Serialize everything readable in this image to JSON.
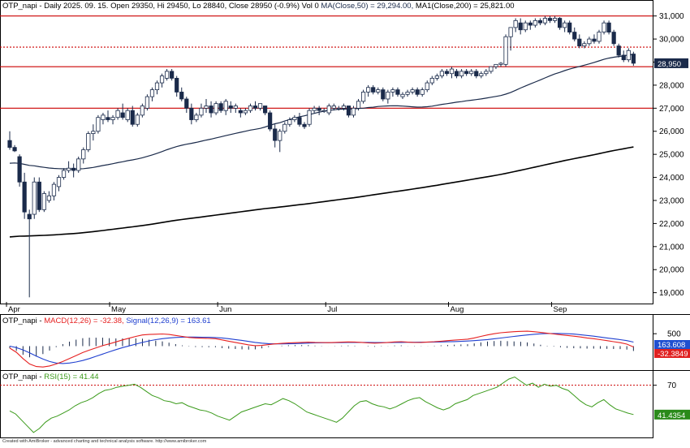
{
  "header": {
    "main_prefix": "OTP_napi - Daily 2025. 09. 15. Open 29350, Hi 29450, Lo 28840, Close 28950 (-0.9%) Vol 0 ",
    "ma50_label": "MA(Close,50) = 29,294.00,",
    "ma200_label": " MA1(Close,200) = 25,821.00",
    "macd_prefix": "OTP_napi - ",
    "macd_label": "MACD(12,26) = -32.38,",
    "signal_label": " Signal(12,26,9) = 163.61",
    "rsi_prefix": "OTP_napi - ",
    "rsi_label": "RSI(15) = 41.44",
    "footer": "Created with AmiBroker - advanced charting and technical analysis software. http://www.amibroker.com"
  },
  "colors": {
    "up_candle": "#ffffff",
    "down_candle": "#1a2a4a",
    "ma50": "#1a2a4a",
    "ma200": "#000000",
    "levels": "#cc0000",
    "macd": "#e62020",
    "signal": "#2040d0",
    "histogram": "#1a2a4a",
    "rsi": "#3a9a1a",
    "macd_badge_signal": "#1f4fd0",
    "macd_badge_macd": "#e02020",
    "rsi_badge": "#2a8a1a",
    "price_badge": "#1a2a4a"
  },
  "chart_data": [
    {
      "type": "candlestick",
      "title": "OTP_napi - Daily",
      "x_labels": [
        "Apr",
        "May",
        "Jun",
        "Jul",
        "Aug",
        "Sep"
      ],
      "y_ticks": [
        "31,000",
        "30,000",
        "29,000",
        "28,000",
        "27,000",
        "26,000",
        "25,000",
        "24,000",
        "23,000",
        "22,000",
        "21,000",
        "20,000",
        "19,000"
      ],
      "ylim": [
        18600,
        31200
      ],
      "last_price_label": "28,950",
      "horizontal_levels": [
        {
          "value": 31000,
          "style": "solid"
        },
        {
          "value": 29650,
          "style": "dotted"
        },
        {
          "value": 28800,
          "style": "solid"
        },
        {
          "value": 27000,
          "style": "solid"
        }
      ],
      "candles": [
        [
          25600,
          26000,
          25200,
          25300
        ],
        [
          25300,
          25400,
          25100,
          25150
        ],
        [
          24900,
          25000,
          23600,
          23800
        ],
        [
          23800,
          24200,
          22200,
          22500
        ],
        [
          22400,
          22600,
          18800,
          22200
        ],
        [
          22400,
          24000,
          22200,
          23800
        ],
        [
          23800,
          24000,
          22500,
          22600
        ],
        [
          22600,
          23400,
          22500,
          23300
        ],
        [
          23000,
          23400,
          22900,
          23200
        ],
        [
          23200,
          23800,
          23000,
          23700
        ],
        [
          23600,
          24100,
          23400,
          24000
        ],
        [
          24000,
          24400,
          23900,
          24300
        ],
        [
          24300,
          24700,
          24200,
          24400
        ],
        [
          24400,
          24600,
          24000,
          24300
        ],
        [
          24300,
          24900,
          24200,
          24800
        ],
        [
          24800,
          25300,
          24600,
          25200
        ],
        [
          25200,
          26000,
          25100,
          25900
        ],
        [
          25900,
          26300,
          25600,
          26000
        ],
        [
          26000,
          26700,
          25900,
          26600
        ],
        [
          26500,
          26800,
          26300,
          26700
        ],
        [
          26600,
          26900,
          26400,
          26500
        ],
        [
          26500,
          26700,
          26300,
          26600
        ],
        [
          26600,
          27000,
          26500,
          26900
        ],
        [
          26800,
          27200,
          26500,
          26600
        ],
        [
          26500,
          27000,
          26400,
          26900
        ],
        [
          26900,
          27100,
          26200,
          26300
        ],
        [
          26300,
          26800,
          26200,
          26700
        ],
        [
          26700,
          27200,
          26600,
          27100
        ],
        [
          27000,
          27600,
          26900,
          27500
        ],
        [
          27500,
          27900,
          27300,
          27800
        ],
        [
          27800,
          28200,
          27600,
          28100
        ],
        [
          28100,
          28500,
          27900,
          28400
        ],
        [
          28300,
          28700,
          28200,
          28600
        ],
        [
          28600,
          28700,
          28200,
          28300
        ],
        [
          28300,
          28400,
          27500,
          27700
        ],
        [
          27700,
          27900,
          27300,
          27400
        ],
        [
          27400,
          27500,
          26800,
          27000
        ],
        [
          27000,
          27200,
          26300,
          26500
        ],
        [
          26500,
          26800,
          26400,
          26700
        ],
        [
          26700,
          27200,
          26600,
          27000
        ],
        [
          27000,
          27400,
          26800,
          27100
        ],
        [
          27100,
          27300,
          26600,
          26800
        ],
        [
          26800,
          27300,
          26700,
          27200
        ],
        [
          27200,
          27300,
          26800,
          26900
        ],
        [
          26900,
          27400,
          26700,
          27300
        ],
        [
          27100,
          27300,
          26800,
          27000
        ],
        [
          27000,
          27200,
          26800,
          27100
        ],
        [
          26900,
          27000,
          26600,
          26800
        ],
        [
          26800,
          27000,
          26700,
          26900
        ],
        [
          26900,
          27200,
          26800,
          27100
        ],
        [
          27100,
          27300,
          26900,
          27000
        ],
        [
          27000,
          27200,
          26900,
          27200
        ],
        [
          27100,
          27100,
          26700,
          26800
        ],
        [
          26800,
          26900,
          26000,
          26100
        ],
        [
          26100,
          26300,
          25300,
          25600
        ],
        [
          25600,
          26100,
          25100,
          26000
        ],
        [
          26000,
          26400,
          25900,
          26300
        ],
        [
          26300,
          26600,
          26200,
          26500
        ],
        [
          26500,
          26700,
          26400,
          26600
        ],
        [
          26600,
          26800,
          26200,
          26300
        ],
        [
          26300,
          26400,
          26100,
          26200
        ],
        [
          26300,
          27000,
          26200,
          26900
        ],
        [
          26900,
          27100,
          26800,
          27000
        ],
        [
          27000,
          27100,
          26700,
          26900
        ],
        [
          26900,
          27000,
          26800,
          26900
        ],
        [
          26800,
          27200,
          26700,
          27100
        ],
        [
          27000,
          27200,
          26900,
          27100
        ],
        [
          27000,
          27100,
          26900,
          27000
        ],
        [
          27000,
          27200,
          26900,
          27100
        ],
        [
          27100,
          27100,
          26600,
          26700
        ],
        [
          26700,
          27100,
          26600,
          27000
        ],
        [
          27000,
          27400,
          26900,
          27300
        ],
        [
          27300,
          27800,
          27200,
          27700
        ],
        [
          27700,
          28000,
          27500,
          27900
        ],
        [
          27900,
          28000,
          27600,
          27700
        ],
        [
          27700,
          27900,
          27600,
          27800
        ],
        [
          27800,
          27900,
          27300,
          27400
        ],
        [
          27400,
          27800,
          27200,
          27700
        ],
        [
          27700,
          27900,
          27500,
          27800
        ],
        [
          27800,
          27900,
          27500,
          27600
        ],
        [
          27500,
          27700,
          27400,
          27600
        ],
        [
          27600,
          27800,
          27500,
          27700
        ],
        [
          27700,
          27900,
          27600,
          27800
        ],
        [
          27800,
          27900,
          27500,
          27600
        ],
        [
          27600,
          27900,
          27500,
          27800
        ],
        [
          27800,
          28200,
          27700,
          28100
        ],
        [
          28100,
          28400,
          28000,
          28300
        ],
        [
          28300,
          28500,
          28200,
          28400
        ],
        [
          28400,
          28700,
          28300,
          28600
        ],
        [
          28600,
          28700,
          28400,
          28500
        ],
        [
          28500,
          28800,
          28300,
          28700
        ],
        [
          28600,
          28700,
          28300,
          28400
        ],
        [
          28400,
          28700,
          28300,
          28600
        ],
        [
          28600,
          28700,
          28400,
          28500
        ],
        [
          28500,
          28700,
          28400,
          28600
        ],
        [
          28600,
          28700,
          28300,
          28400
        ],
        [
          28400,
          28600,
          28300,
          28500
        ],
        [
          28500,
          28700,
          28400,
          28600
        ],
        [
          28600,
          28800,
          28500,
          28800
        ],
        [
          28800,
          28900,
          28700,
          28900
        ],
        [
          28900,
          29000,
          28800,
          28950
        ],
        [
          28900,
          30200,
          28800,
          30100
        ],
        [
          30100,
          30400,
          29500,
          30500
        ],
        [
          30500,
          30900,
          30300,
          30800
        ],
        [
          30700,
          30900,
          30200,
          30400
        ],
        [
          30400,
          30800,
          30300,
          30700
        ],
        [
          30700,
          30800,
          30400,
          30600
        ],
        [
          30600,
          30900,
          30500,
          30800
        ],
        [
          30800,
          30900,
          30600,
          30700
        ],
        [
          30700,
          31000,
          30600,
          30900
        ],
        [
          30900,
          31000,
          30700,
          30800
        ],
        [
          30800,
          31000,
          30700,
          30900
        ],
        [
          30900,
          30950,
          30400,
          30500
        ],
        [
          30500,
          30800,
          30300,
          30700
        ],
        [
          30700,
          30800,
          30200,
          30300
        ],
        [
          30300,
          30500,
          29900,
          30000
        ],
        [
          30000,
          30200,
          29600,
          29700
        ],
        [
          29700,
          29900,
          29600,
          29800
        ],
        [
          29800,
          30100,
          29700,
          30000
        ],
        [
          30000,
          30200,
          29800,
          29900
        ],
        [
          29900,
          30400,
          29800,
          30300
        ],
        [
          30300,
          30800,
          30200,
          30700
        ],
        [
          30700,
          30800,
          30200,
          30300
        ],
        [
          30300,
          30400,
          29700,
          29800
        ],
        [
          29700,
          29800,
          29200,
          29300
        ],
        [
          29300,
          29500,
          29000,
          29100
        ],
        [
          29100,
          29600,
          29000,
          29500
        ],
        [
          29350,
          29450,
          28840,
          28950
        ]
      ]
    },
    {
      "type": "line",
      "title": "MACD(12,26)",
      "y_ticks": [
        "500"
      ],
      "ylim": [
        -900,
        800
      ],
      "badges": [
        "163.608",
        "-32.3849"
      ],
      "series": [
        {
          "name": "MACD(12,26)",
          "values": [
            -80,
            -250,
            -500,
            -720,
            -820,
            -840,
            -800,
            -720,
            -620,
            -500,
            -380,
            -260,
            -160,
            -70,
            20,
            90,
            170,
            250,
            320,
            390,
            450,
            470,
            480,
            490,
            470,
            430,
            390,
            350,
            330,
            320,
            310,
            300,
            250,
            200,
            150,
            100,
            50,
            20,
            30,
            60,
            90,
            110,
            130,
            140,
            150,
            160,
            150,
            145,
            140,
            150,
            160,
            170,
            165,
            150,
            130,
            120,
            130,
            150,
            170,
            180,
            160,
            145,
            150,
            165,
            180,
            200,
            220,
            240,
            260,
            280,
            330,
            390,
            450,
            500,
            540,
            560,
            580,
            595,
            600,
            580,
            550,
            520,
            490,
            460,
            430,
            400,
            370,
            330,
            300,
            260,
            220,
            180,
            140,
            80,
            -32.38
          ]
        },
        {
          "name": "Signal(12,26,9)",
          "values": [
            0,
            -60,
            -150,
            -270,
            -400,
            -520,
            -620,
            -680,
            -700,
            -680,
            -640,
            -580,
            -500,
            -410,
            -320,
            -230,
            -140,
            -60,
            10,
            80,
            150,
            210,
            260,
            300,
            330,
            350,
            360,
            365,
            365,
            360,
            355,
            345,
            330,
            300,
            265,
            230,
            190,
            150,
            120,
            100,
            90,
            90,
            95,
            100,
            110,
            120,
            130,
            135,
            138,
            140,
            142,
            145,
            148,
            150,
            148,
            146,
            144,
            143,
            145,
            150,
            155,
            157,
            158,
            160,
            163,
            168,
            175,
            183,
            193,
            205,
            220,
            240,
            265,
            295,
            325,
            360,
            390,
            420,
            450,
            475,
            495,
            505,
            510,
            508,
            500,
            485,
            460,
            430,
            400,
            365,
            330,
            295,
            260,
            220,
            163.61
          ]
        }
      ]
    },
    {
      "type": "line",
      "title": "RSI(15)",
      "y_ticks": [
        "70"
      ],
      "ylim": [
        20,
        80
      ],
      "badges": [
        "41.4354"
      ],
      "series": [
        {
          "name": "RSI(15)",
          "values": [
            45,
            42,
            36,
            30,
            24,
            28,
            34,
            38,
            40,
            43,
            46,
            50,
            53,
            55,
            58,
            62,
            65,
            66,
            68,
            69,
            70,
            71,
            68,
            64,
            60,
            58,
            55,
            54,
            52,
            53,
            50,
            48,
            46,
            45,
            43,
            40,
            38,
            36,
            40,
            44,
            46,
            48,
            50,
            52,
            51,
            54,
            57,
            55,
            52,
            48,
            44,
            42,
            40,
            38,
            36,
            34,
            38,
            44,
            50,
            54,
            55,
            52,
            50,
            49,
            47,
            49,
            52,
            55,
            57,
            58,
            54,
            51,
            48,
            46,
            48,
            52,
            54,
            56,
            60,
            62,
            64,
            66,
            68,
            72,
            76,
            78,
            74,
            70,
            72,
            68,
            71,
            69,
            70,
            67,
            65,
            60,
            55,
            51,
            49,
            53,
            56,
            51,
            47,
            45,
            43,
            41.44
          ]
        }
      ]
    }
  ]
}
